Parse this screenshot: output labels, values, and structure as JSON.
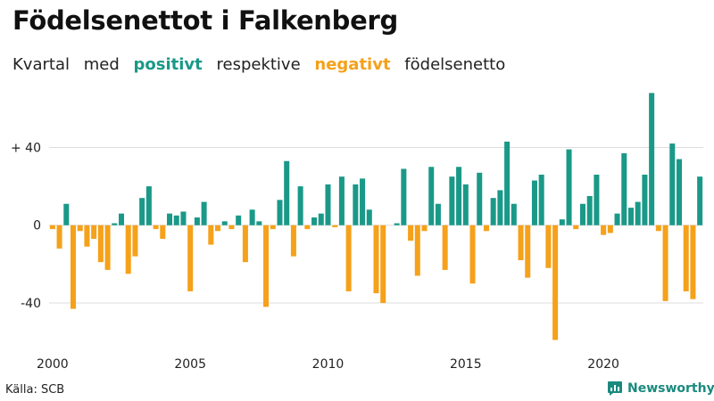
{
  "title": "Födelsenettot i Falkenberg",
  "subtitle": {
    "prefix": "Kvartal",
    "word_with": "med",
    "positive_word": "positivt",
    "middle": "respektive",
    "negative_word": "negativt",
    "suffix": "födelsenetto"
  },
  "colors": {
    "positive": "#1a9988",
    "negative": "#f5a11a",
    "grid": "#dddddd",
    "brand": "#1a8a7e"
  },
  "source": "Källa: SCB",
  "brand": {
    "name": "Newsworthy",
    "icon": "newsworthy-logo-icon"
  },
  "chart_data": {
    "type": "bar",
    "x_unit": "quarter",
    "x_start": "2000 Q1",
    "x_ticks": [
      "2000",
      "2005",
      "2010",
      "2015",
      "2020"
    ],
    "y_ticks": [
      "+ 40",
      "0",
      "-40"
    ],
    "ylim": [
      -62,
      70
    ],
    "grid": true,
    "legend": "none",
    "values": [
      -2,
      -12,
      11,
      -43,
      -3,
      -11,
      -7,
      -19,
      -23,
      1,
      6,
      -25,
      -16,
      14,
      20,
      -2,
      -7,
      6,
      5,
      7,
      -34,
      4,
      12,
      -10,
      -3,
      2,
      -2,
      5,
      -19,
      8,
      2,
      -42,
      -2,
      13,
      33,
      -16,
      20,
      -2,
      4,
      6,
      21,
      -1,
      25,
      -34,
      21,
      24,
      8,
      -35,
      -40,
      0,
      1,
      29,
      -8,
      -26,
      -3,
      30,
      11,
      -23,
      25,
      30,
      21,
      -30,
      27,
      -3,
      14,
      18,
      43,
      11,
      -18,
      -27,
      23,
      26,
      -22,
      -59,
      3,
      39,
      -2,
      11,
      15,
      26,
      -5,
      -4,
      6,
      37,
      9,
      12,
      26,
      68,
      -3,
      -39,
      42,
      34,
      -34,
      -38,
      25
    ]
  }
}
